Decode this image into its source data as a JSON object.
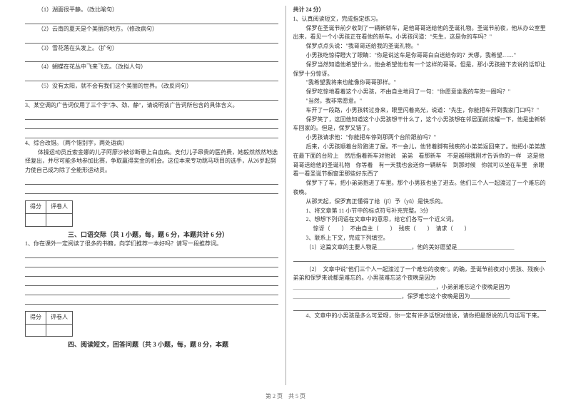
{
  "left": {
    "q1": "（1）湖面很平静。（改比喻句）",
    "q2": "（2）云南的夏天是个美丽的地方。（修改病句）",
    "q3": "（3）雪花落在头发上。（扩句）",
    "q4": "（4）蝴蝶在花丛中飞来飞去。（改拟人句）",
    "q5": "（5）没有太阳，就不会有我们这个美丽的世界。（改反问句）",
    "item3": "3、某空调的广告词仅用了三个字\"净、劲、静\"，请说明该广告词所包含的具体含义。",
    "item4_title": "4、综合改错。（两个错别字，两处语病）",
    "item4_body": "体操运动员丘索金娜的儿子阿廖沙被诊断患上白血病。支付儿子昂贵的医药费，她毅然然然地选择复出，并尽可能多地参加比赛，争取赢得奖金的机会。这位本来专功跳马项目的选手，从26岁起努力使自己成为除了全能形运动员。",
    "score_col1": "得分",
    "score_col2": "评卷人",
    "section3": "三、口语交际（共 1 小题，每，题 6 分，本题共计 6 分）",
    "oral_q": "1、你在课外一定阅读了很多的书籍，向学们推荐一本好吗？请写一段推荐词。",
    "section4": "四、阅读短文，回答问题（共 3 小题，每，题 8 分，本题"
  },
  "right": {
    "head": "共计 24 分）",
    "r1": "1、认真阅读短文，完成指定练习。",
    "p1": "保罗在圣诞节前夕收到了一辆新轿车，是他哥哥送给他的圣诞礼物。圣诞节前夜，他从办公室里出来，看见一个小男孩正在看他的新车。小男孩问道：\"先生，这是你的车吗？\"",
    "p2": "保罗点点头说：\"我哥哥送给我的圣诞礼物。\"",
    "p3": "小男孩吃惊得瞪大了眼睛：\"你是说这车是你哥哥白白送给你的？天哪，我希望……\"",
    "p4": "保罗当然知道他希望什么，他会希望他也有一个这样的哥哥。但是，那小男孩接下去说的话却让保罗十分惊讶。",
    "p5": "\"我希望我将来也能像你哥哥那样。\"",
    "p6": "保罗吃惊地看着这个小男孩，不由自主地问了一句：\"你愿意坐我的车兜一圈吗？\"",
    "p7": "\"当然，我非常愿意。\"",
    "p8": "车开了一段路，小男孩转过身来，眼里闪着亮光，说道：\"先生，你能把车开到我家门口吗？\"",
    "p9": "保罗笑了，这回他知道这个小男孩想干什么了，这个小男孩想在邻居面前炫耀一下，他是坐新轿车回家的。但是，保罗又错了。",
    "p10": "小男孩请求他：\"你能把车停到那两个台阶跟前吗？\"",
    "p11": "后来，小男孩顺着台阶跑进了屋。不一会儿，他背着脚有残疾的小弟弟返回来了。他把小弟弟放在最下面的台阶上　然后指着新车对他说　弟弟　看那新车　不是越翔我刚才告诉你的一样　这是他哥哥送给他的圣诞礼物　你等着　有一天我也会送你一辆新车　到那时候　你就可以坐在车里　亲眼看一看圣诞节橱窗里那些好东西了",
    "p12": "保罗下了车，把小弟弟抱进了车里。那个小男孩也坐了进去。他们三个人一起渡过了一个难忘的夜晚。",
    "p13": "从那天起，保罗真正懂得了给（jǐ）予（yǔ）是快乐的。",
    "sub1": "1、将文章第 11 小节中的标点符号补充完整。3分",
    "sub2": "2、想想下列词语在文章中的意思，给它们各写一个近义词。",
    "sub2_line": "惊讶（　　）　不由自主（　　）　残疾（　　）　请求（　　）",
    "sub3": "3、联系上下文，完成下列填空。",
    "sub3_1": "（1）这篇文章的主要人物是＿＿＿＿＿＿，他的美好愿望是＿＿＿＿＿＿＿＿＿＿",
    "sub3_2": "（2）　文章中说\"他们三个人一起渡过了一个难忘的夜晚\"。的确，圣诞节前夜对小男孩、残疾小弟弟和保罗来说都是难忘的。小男孩难忘这个夜晚是因为",
    "sub3_2b": "＿＿＿＿＿＿＿＿＿＿＿＿＿＿＿＿＿＿＿＿＿＿＿＿＿，小弟弟难忘这个夜晚是因为",
    "sub3_2c": "＿＿＿＿＿＿＿＿＿＿＿＿＿＿＿＿＿＿＿，保罗难忘这个夜晚是因为＿＿＿＿＿＿＿",
    "sub4": "4、文章中的小男孩是多么可爱呀，你一定有许多话想对他说，请你把最想说的几句话写下来。"
  },
  "footer": "第 2 页　共 5 页"
}
